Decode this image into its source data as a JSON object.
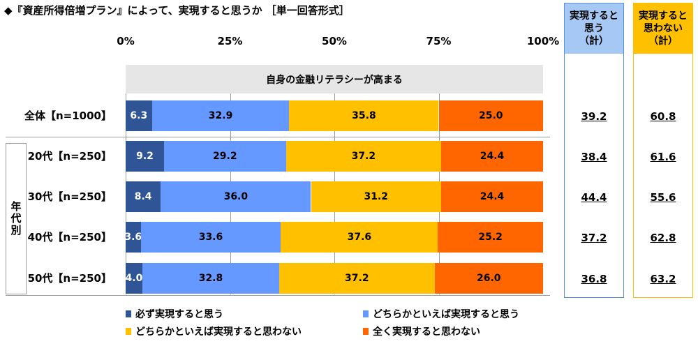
{
  "title": "◆『資産所得倍増プラン』によって、実現すると思うか ［単一回答形式］",
  "colors": {
    "strong_yes": "#2f5597",
    "weak_yes": "#6699ff",
    "weak_no": "#ffc000",
    "strong_no": "#ff6600",
    "panel_bg": "#e6e6e6",
    "sum_yes_bg": "#a6c8f4",
    "sum_yes_border": "#5b8fd6",
    "sum_no_bg": "#ffc000",
    "sum_no_border": "#ffc000"
  },
  "chart_data": {
    "type": "bar",
    "orientation": "horizontal",
    "stacked": "percent",
    "title": "自身の金融リテラシーが高まる",
    "xlim": [
      0,
      100
    ],
    "ticks": [
      "0%",
      "25%",
      "50%",
      "75%",
      "100%"
    ],
    "tick_values": [
      0,
      25,
      50,
      75,
      100
    ],
    "categories": [
      "全体【n=1000】",
      "20代【n=250】",
      "30代【n=250】",
      "40代【n=250】",
      "50代【n=250】"
    ],
    "group_label": "年代別",
    "series": [
      {
        "name": "必ず実現すると思う",
        "color": "#2f5597",
        "text_color": "#ffffff",
        "values": [
          6.3,
          9.2,
          8.4,
          3.6,
          4.0
        ],
        "labels": [
          "6.3",
          "9.2",
          "8.4",
          "3.6",
          "4.0"
        ]
      },
      {
        "name": "どちらかといえば実現すると思う",
        "color": "#6699ff",
        "text_color": "#000000",
        "values": [
          32.9,
          29.2,
          36.0,
          33.6,
          32.8
        ],
        "labels": [
          "32.9",
          "29.2",
          "36.0",
          "33.6",
          "32.8"
        ]
      },
      {
        "name": "どちらかといえば実現すると思わない",
        "color": "#ffc000",
        "text_color": "#000000",
        "values": [
          35.8,
          37.2,
          31.2,
          37.6,
          37.2
        ],
        "labels": [
          "35.8",
          "37.2",
          "31.2",
          "37.6",
          "37.2"
        ]
      },
      {
        "name": "全く実現すると思わない",
        "color": "#ff6600",
        "text_color": "#000000",
        "values": [
          25.0,
          24.4,
          24.4,
          25.2,
          26.0
        ],
        "labels": [
          "25.0",
          "24.4",
          "24.4",
          "25.2",
          "26.0"
        ]
      }
    ],
    "summary_columns": [
      {
        "header": [
          "実現すると",
          "思う",
          "（計）"
        ],
        "values": [
          "39.2",
          "38.4",
          "44.4",
          "37.2",
          "36.8"
        ]
      },
      {
        "header": [
          "実現すると",
          "思わない",
          "（計）"
        ],
        "values": [
          "60.8",
          "61.6",
          "55.6",
          "62.8",
          "63.2"
        ]
      }
    ],
    "legend_position": "bottom"
  }
}
